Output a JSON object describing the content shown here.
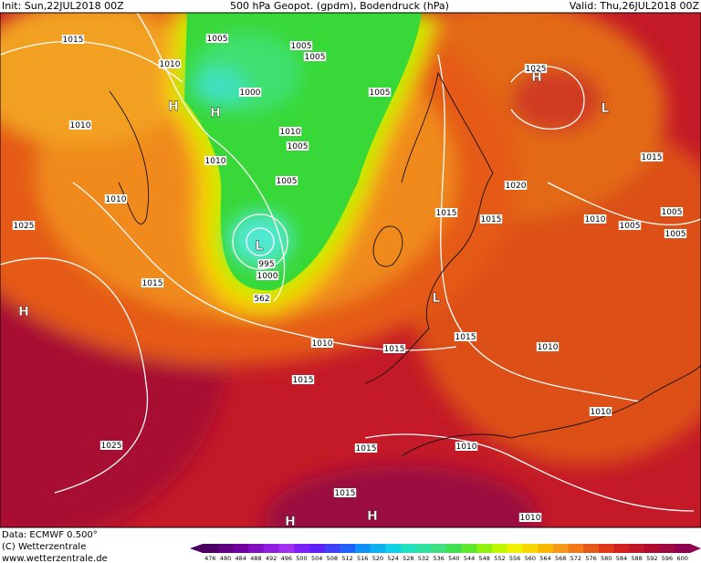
{
  "header": {
    "init": "Init: Sun,22JUL2018 00Z",
    "title": "500 hPa Geopot. (gpdm), Bodendruck (hPa)",
    "valid": "Valid: Thu,26JUL2018 00Z"
  },
  "footer": {
    "data": "Data: ECMWF  0.500°",
    "copyright": "(C) Wetterzentrale",
    "url": "www.wetterzentrale.de"
  },
  "isobar_labels": [
    "1015",
    "1010",
    "1005",
    "1005",
    "1005",
    "1000",
    "1005",
    "1010",
    "1010",
    "1005",
    "1010",
    "1005",
    "1010",
    "1025",
    "995",
    "1000",
    "562",
    "1015",
    "1015",
    "1015",
    "1020",
    "1015",
    "1025",
    "1010",
    "1005",
    "1005",
    "1005",
    "1010",
    "1015",
    "1015",
    "1010",
    "1015",
    "1010",
    "1025",
    "1015",
    "1010",
    "1015",
    "1010"
  ],
  "pressure_centers": [
    "H",
    "H",
    "L",
    "L",
    "H",
    "L",
    "H",
    "H",
    "H"
  ],
  "colorbar": {
    "labels": [
      476,
      480,
      484,
      488,
      492,
      496,
      500,
      504,
      508,
      512,
      516,
      520,
      524,
      528,
      532,
      536,
      540,
      544,
      548,
      552,
      556,
      560,
      564,
      568,
      572,
      576,
      580,
      584,
      588,
      592,
      596,
      600
    ],
    "colors": [
      "#4a0060",
      "#600080",
      "#7000a0",
      "#8010c0",
      "#9020e0",
      "#a030f0",
      "#8020f8",
      "#6020f8",
      "#4040f8",
      "#2060f8",
      "#1090f8",
      "#10b0f0",
      "#10d0e8",
      "#20e0c0",
      "#30e0a0",
      "#40e080",
      "#40e050",
      "#60e830",
      "#90f010",
      "#c0f800",
      "#f0f000",
      "#f8d800",
      "#f8b800",
      "#f89818",
      "#f07818",
      "#e85818",
      "#e03818",
      "#d02020",
      "#c01828",
      "#b00c30",
      "#a00840",
      "#900050"
    ]
  }
}
